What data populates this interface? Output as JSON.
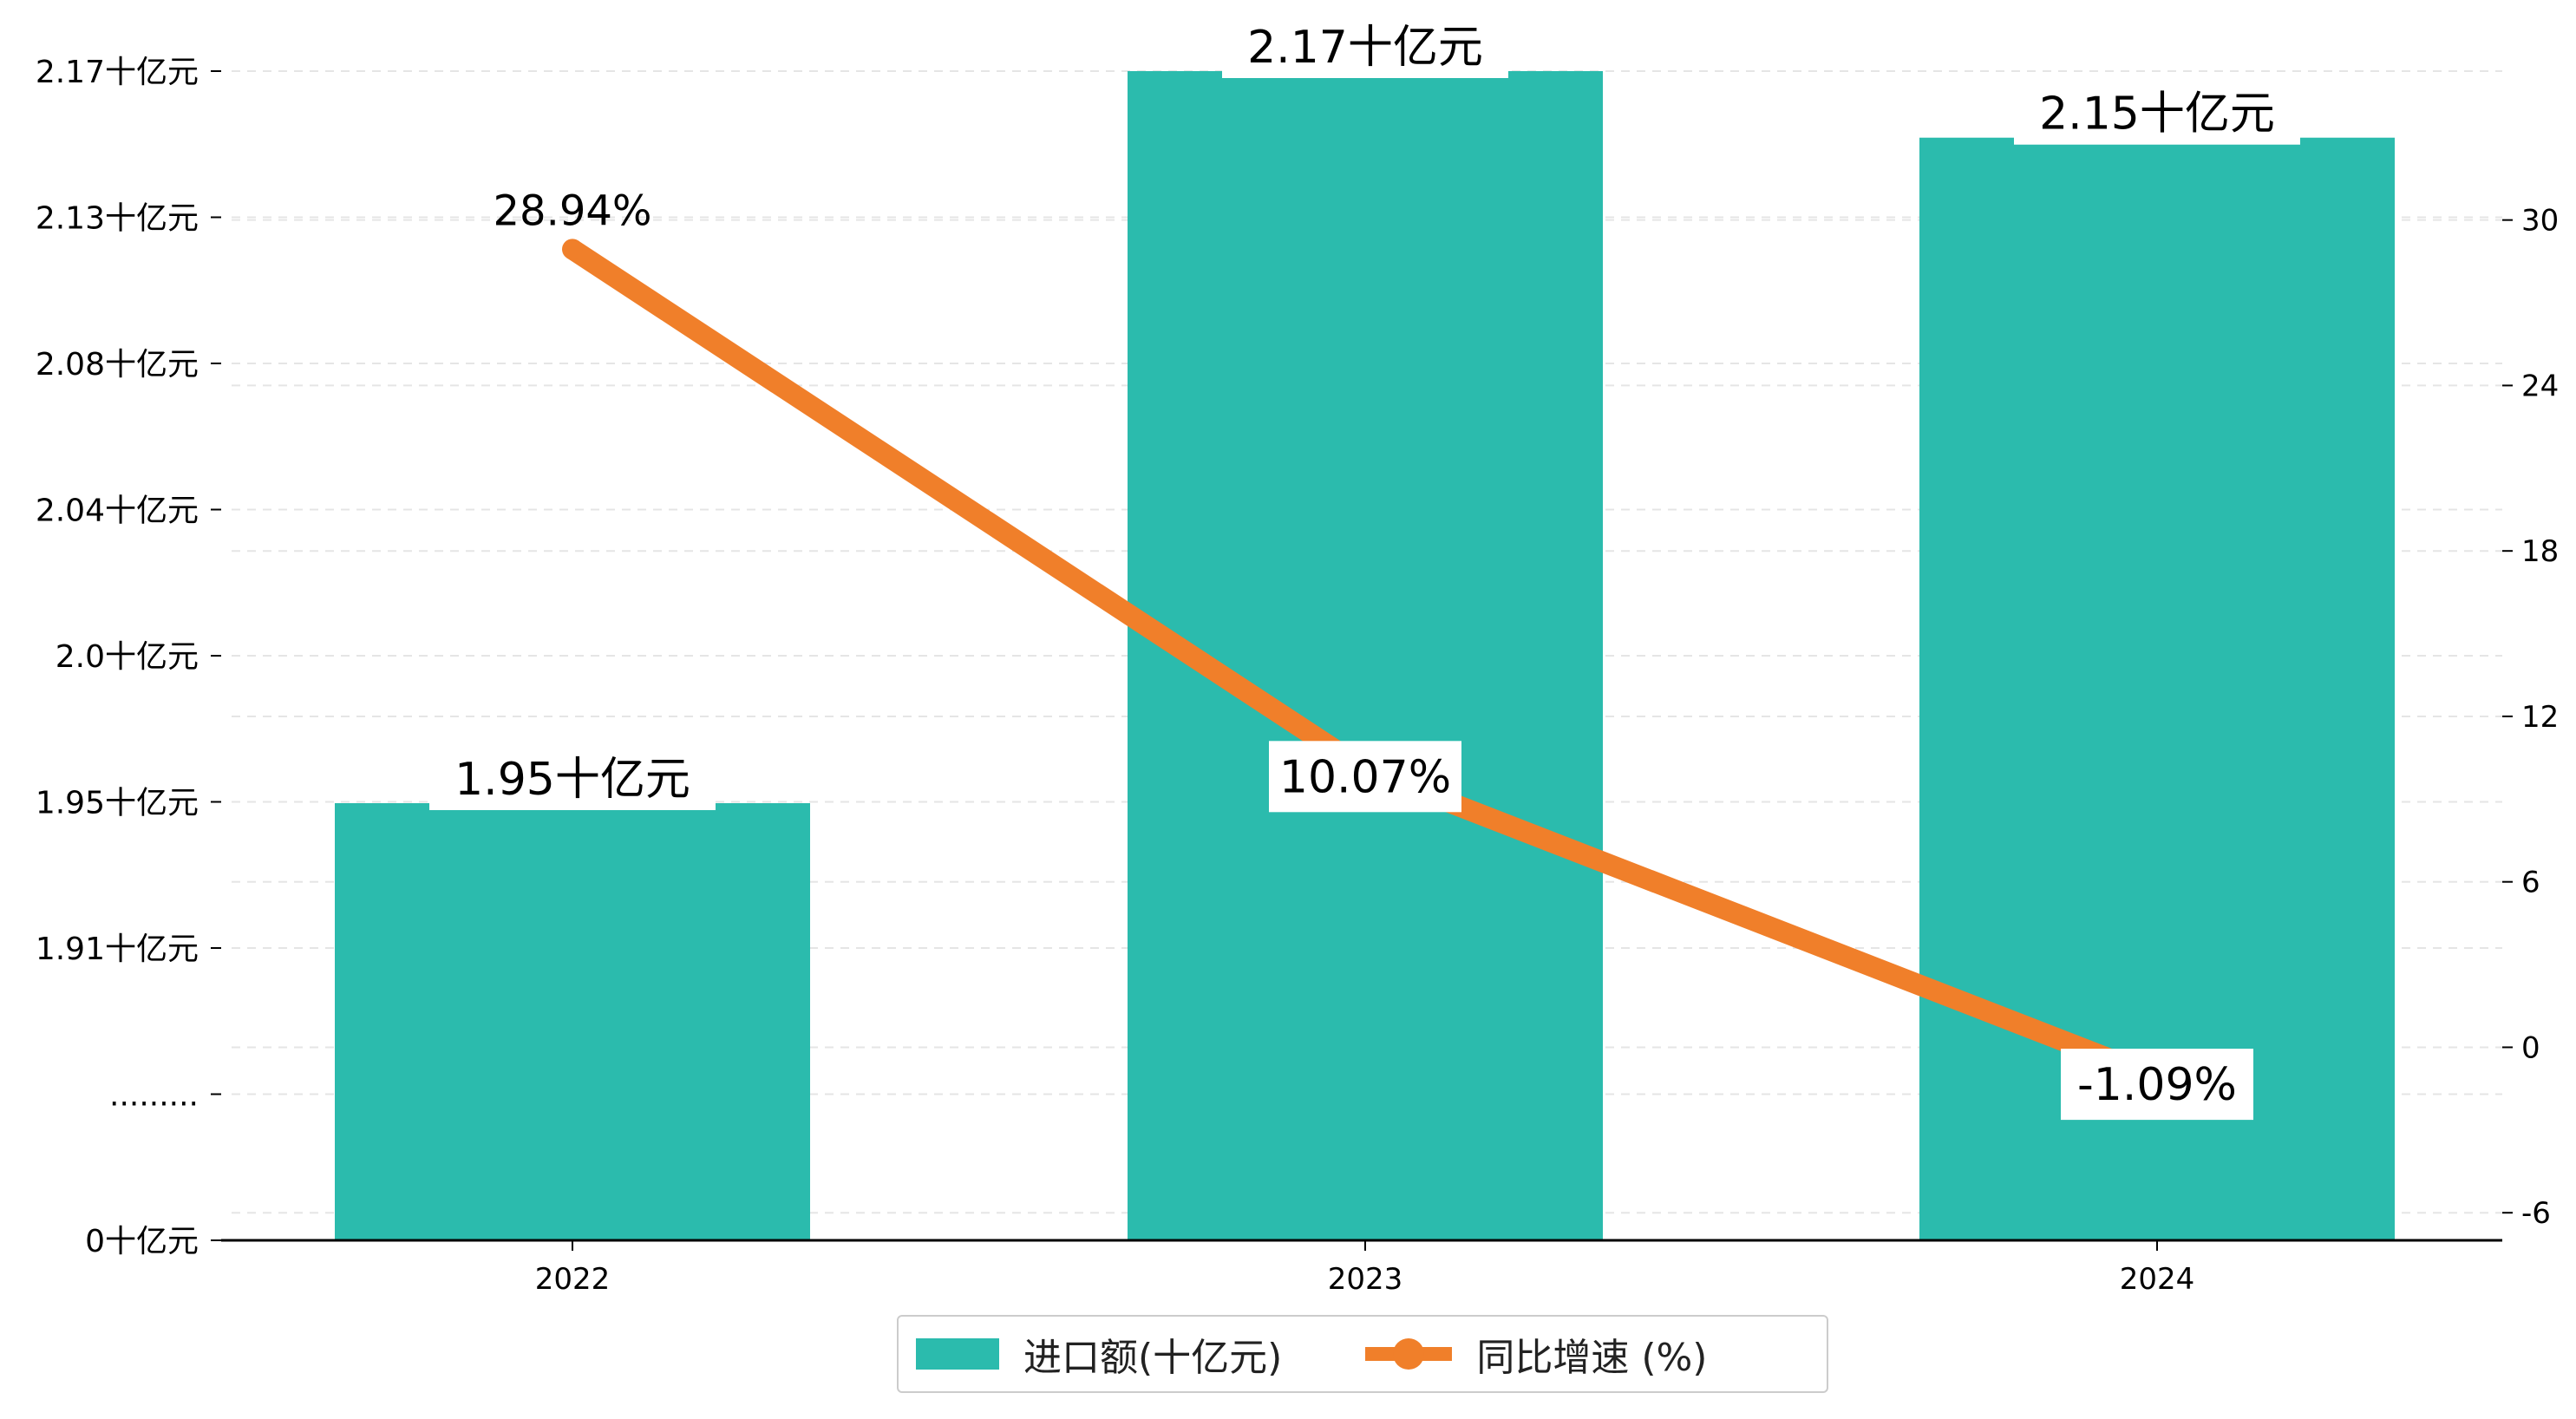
{
  "colors": {
    "bar": "#2bbbad",
    "line": "#f07f2a",
    "grid": "#e5e5e5",
    "axis": "#000000"
  },
  "chart_data": {
    "type": "bar",
    "categories": [
      "2022",
      "2023",
      "2024"
    ],
    "series": [
      {
        "name": "进口额(十亿元)",
        "type": "bar",
        "axis": "left",
        "values": [
          1.95,
          2.17,
          2.15
        ],
        "data_labels": [
          "1.95十亿元",
          "2.17十亿元",
          "2.15十亿元"
        ]
      },
      {
        "name": "同比增速 (%)",
        "type": "line",
        "axis": "right",
        "values": [
          28.94,
          10.07,
          -1.09
        ],
        "data_labels": [
          "28.94%",
          "10.07%",
          "-1.09%"
        ]
      }
    ],
    "left_axis": {
      "ticks": [
        "0十亿元",
        ".........",
        "1.91十亿元",
        "1.95十亿元",
        "2.0十亿元",
        "2.04十亿元",
        "2.08十亿元",
        "2.13十亿元",
        "2.17十亿元"
      ],
      "broken": true
    },
    "right_axis": {
      "ticks": [
        -6,
        0,
        6,
        12,
        18,
        24,
        30
      ],
      "ylim": [
        -7,
        35.4
      ]
    },
    "grid": "dashed horizontal",
    "legend_placement": "bottom-center"
  }
}
